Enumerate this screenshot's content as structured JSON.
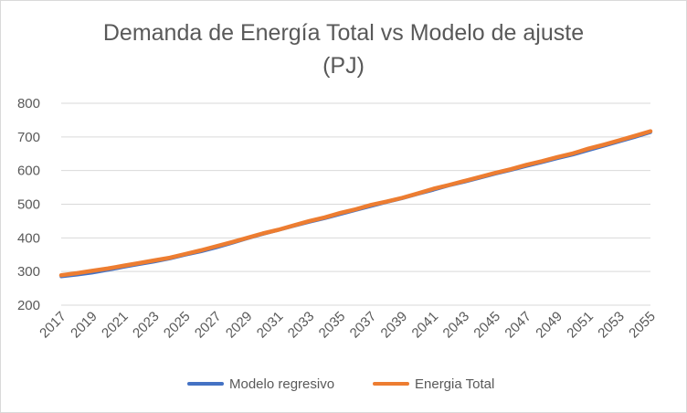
{
  "chart_data": {
    "type": "line",
    "title_line1": "Demanda de Energía Total vs Modelo de ajuste",
    "title_line2": "(PJ)",
    "xlabel": "",
    "ylabel": "",
    "ylim": [
      200,
      800
    ],
    "yticks": [
      200,
      300,
      400,
      500,
      600,
      700,
      800
    ],
    "grid": true,
    "legend_placement": "bottom",
    "x": [
      2017,
      2018,
      2019,
      2020,
      2021,
      2022,
      2023,
      2024,
      2025,
      2026,
      2027,
      2028,
      2029,
      2030,
      2031,
      2032,
      2033,
      2034,
      2035,
      2036,
      2037,
      2038,
      2039,
      2040,
      2041,
      2042,
      2043,
      2044,
      2045,
      2046,
      2047,
      2048,
      2049,
      2050,
      2051,
      2052,
      2053,
      2054,
      2055
    ],
    "xtick_labels": [
      "2017",
      "2019",
      "2021",
      "2023",
      "2025",
      "2027",
      "2029",
      "2031",
      "2033",
      "2035",
      "2037",
      "2039",
      "2041",
      "2043",
      "2045",
      "2047",
      "2049",
      "2051",
      "2053",
      "2055"
    ],
    "series": [
      {
        "name": "Modelo regresivo",
        "color": "#4472c4",
        "values": [
          285,
          290,
          296,
          304,
          313,
          321,
          329,
          338,
          349,
          359,
          371,
          384,
          398,
          411,
          423,
          435,
          447,
          458,
          470,
          482,
          494,
          506,
          517,
          530,
          542,
          555,
          566,
          578,
          590,
          601,
          613,
          624,
          636,
          647,
          660,
          673,
          686,
          699,
          713
        ]
      },
      {
        "name": "Energia Total",
        "color": "#ed7d31",
        "values": [
          289,
          295,
          302,
          309,
          317,
          325,
          333,
          341,
          352,
          363,
          375,
          387,
          400,
          413,
          424,
          437,
          450,
          461,
          474,
          485,
          498,
          508,
          519,
          532,
          546,
          557,
          569,
          581,
          593,
          604,
          617,
          628,
          640,
          651,
          665,
          677,
          690,
          703,
          717
        ]
      }
    ]
  }
}
